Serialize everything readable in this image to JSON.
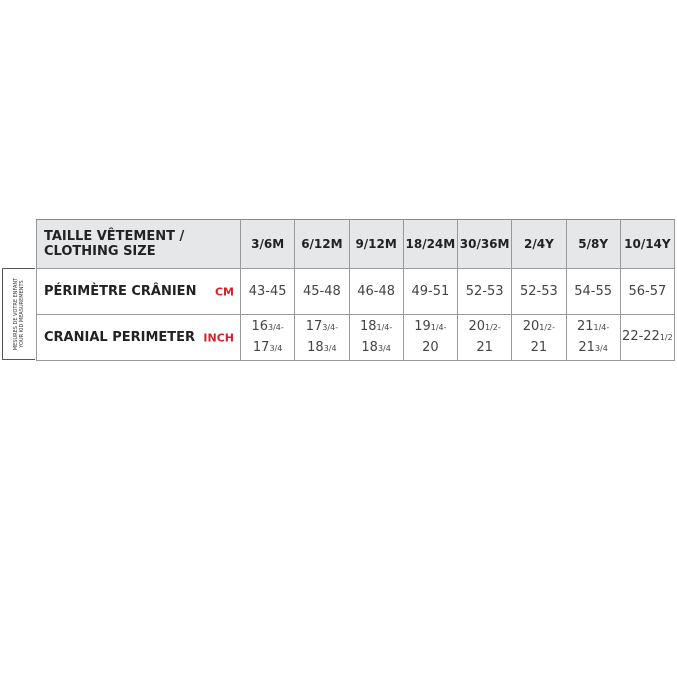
{
  "side_label": [
    "MESURES DE VOTRE ENFANT",
    "YOUR KID MEASUREMENTS"
  ],
  "header": {
    "label_line1": "TAILLE VÊTEMENT /",
    "label_line2": "CLOTHING SIZE",
    "sizes": [
      "3/6M",
      "6/12M",
      "9/12M",
      "18/24M",
      "30/36M",
      "2/4Y",
      "5/8Y",
      "10/14Y"
    ]
  },
  "rows": [
    {
      "label": "PÉRIMÈTRE CRÂNIEN",
      "unit": "CM",
      "values": [
        "43-45",
        "45-48",
        "46-48",
        "49-51",
        "52-53",
        "52-53",
        "54-55",
        "56-57"
      ]
    },
    {
      "label": "CRANIAL PERIMETER",
      "unit": "INCH",
      "values": [
        {
          "a": "16",
          "af": "3/4-",
          "b": "17",
          "bf": "3/4"
        },
        {
          "a": "17",
          "af": "3/4-",
          "b": "18",
          "bf": "3/4"
        },
        {
          "a": "18",
          "af": "1/4-",
          "b": "18",
          "bf": "3/4"
        },
        {
          "a": "19",
          "af": "1/4-",
          "b": "20",
          "bf": ""
        },
        {
          "a": "20",
          "af": "1/2-",
          "b": "21",
          "bf": ""
        },
        {
          "a": "20",
          "af": "1/2-",
          "b": "21",
          "bf": ""
        },
        {
          "a": "21",
          "af": "1/4-",
          "b": "21",
          "bf": "3/4"
        },
        {
          "a": "22-22",
          "af": "1/2",
          "b": "",
          "bf": ""
        }
      ]
    }
  ],
  "colors": {
    "header_bg": "#e6e7e9",
    "unit": "#d6202a"
  }
}
